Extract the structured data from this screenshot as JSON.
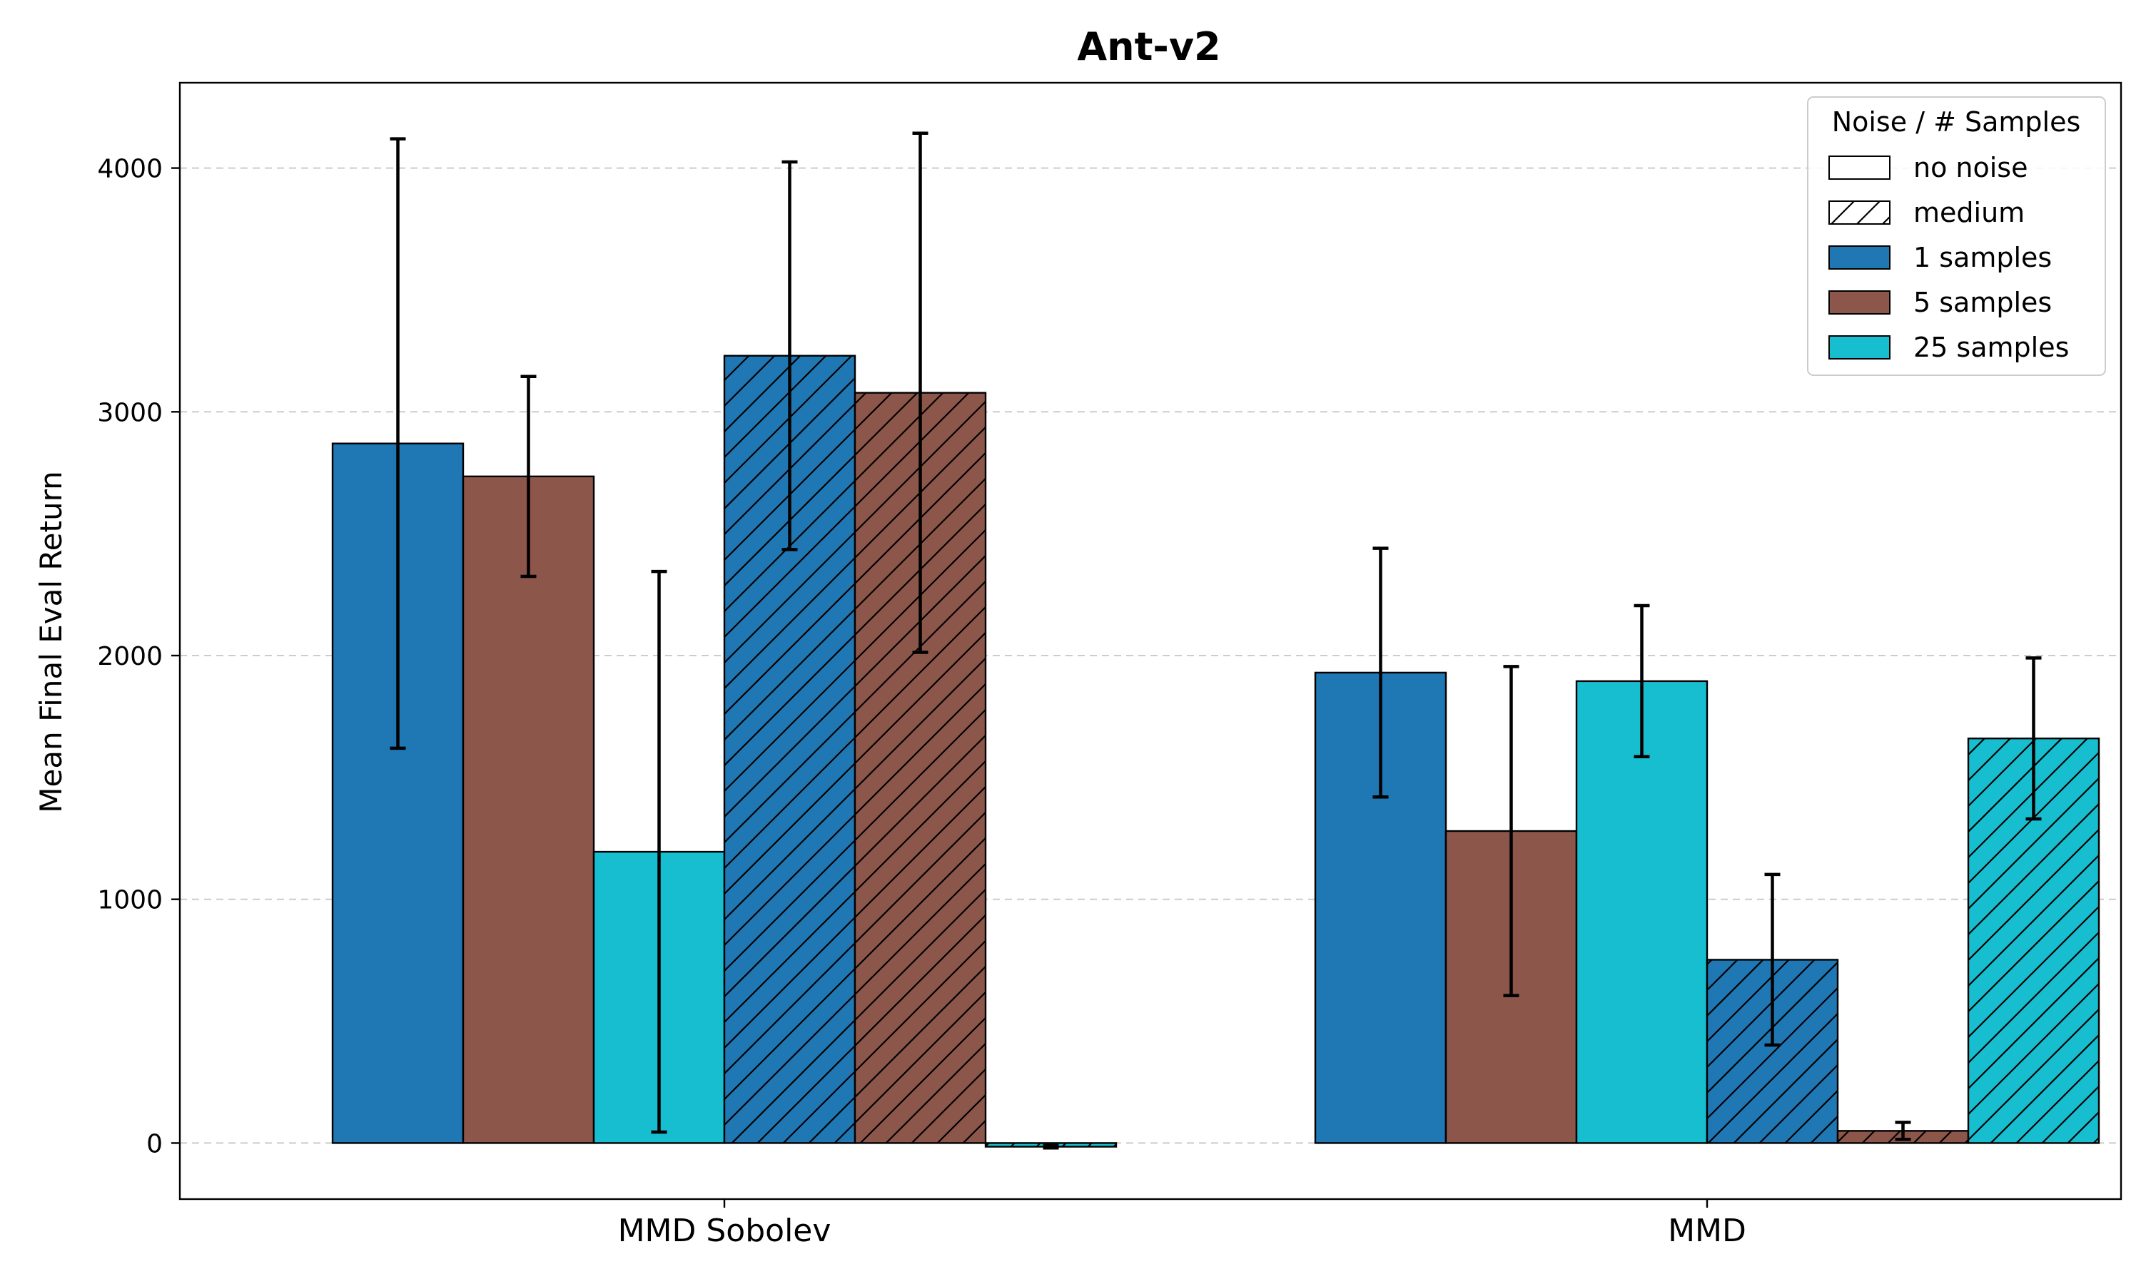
{
  "chart_data": {
    "type": "bar",
    "title": "Ant-v2",
    "xlabel": "",
    "ylabel": "Mean Final Eval Return",
    "categories": [
      "MMD Sobolev",
      "MMD"
    ],
    "ylim": [
      -230,
      4350
    ],
    "yticks": [
      0,
      1000,
      2000,
      3000,
      4000
    ],
    "grid": "y-dashed",
    "legend": {
      "title": "Noise / # Samples",
      "position": "top-right",
      "noise_entries": [
        {
          "label": "no noise",
          "hatch": false
        },
        {
          "label": "medium",
          "hatch": true
        }
      ],
      "sample_entries": [
        {
          "label": "1 samples",
          "color": "#1f77b4"
        },
        {
          "label": "5 samples",
          "color": "#8c564b"
        },
        {
          "label": "25 samples",
          "color": "#17becf"
        }
      ]
    },
    "series": [
      {
        "name": "no noise / 1 samples",
        "noise": "no noise",
        "samples": 1,
        "color": "#1f77b4",
        "hatch": false,
        "values": [
          2870,
          1930
        ],
        "errors": [
          1250,
          510
        ]
      },
      {
        "name": "no noise / 5 samples",
        "noise": "no noise",
        "samples": 5,
        "color": "#8c564b",
        "hatch": false,
        "values": [
          2735,
          1280
        ],
        "errors": [
          410,
          675
        ]
      },
      {
        "name": "no noise / 25 samples",
        "noise": "no noise",
        "samples": 25,
        "color": "#17becf",
        "hatch": false,
        "values": [
          1195,
          1895
        ],
        "errors": [
          1150,
          310
        ]
      },
      {
        "name": "medium / 1 samples",
        "noise": "medium",
        "samples": 1,
        "color": "#1f77b4",
        "hatch": true,
        "values": [
          3230,
          752
        ],
        "errors": [
          795,
          350
        ]
      },
      {
        "name": "medium / 5 samples",
        "noise": "medium",
        "samples": 5,
        "color": "#8c564b",
        "hatch": true,
        "values": [
          3078,
          50
        ],
        "errors": [
          1065,
          35
        ]
      },
      {
        "name": "medium / 25 samples",
        "noise": "medium",
        "samples": 25,
        "color": "#17becf",
        "hatch": true,
        "values": [
          -15,
          1660
        ],
        "errors": [
          5,
          330
        ]
      }
    ]
  }
}
